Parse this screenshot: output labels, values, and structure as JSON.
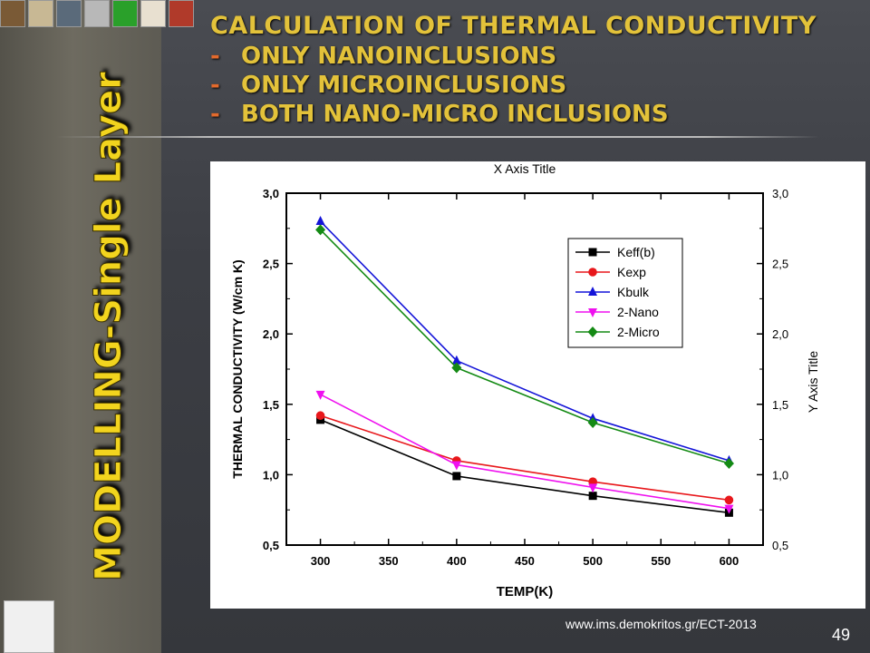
{
  "slide": {
    "title": "CALCULATION OF THERMAL CONDUCTIVITY",
    "bullets": [
      "ONLY NANOINCLUSIONS",
      "ONLY MICROINCLUSIONS",
      "BOTH  NANO-MICRO INCLUSIONS"
    ],
    "bullet_dash": "-",
    "side_title": "MODELLING-Single Layer",
    "footer_url": "www.ims.demokritos.gr/ECT-2013",
    "page_number": "49",
    "colors": {
      "heading": "#e3c23a",
      "side_title": "#f2d41e",
      "dash": "#e36a2c"
    }
  },
  "chart_data": {
    "type": "line",
    "title": "X Axis Title",
    "xlabel": "TEMP(K)",
    "ylabel": "THERMAL CONDUCTIVITY  (W/cm K)",
    "y2label": "Y Axis Title",
    "x": [
      300,
      400,
      500,
      600
    ],
    "xlim": [
      275,
      625
    ],
    "ylim": [
      0.5,
      3.0
    ],
    "xticks": [
      "300",
      "350",
      "400",
      "450",
      "500",
      "550",
      "600"
    ],
    "yticks": [
      "0,5",
      "1,0",
      "1,5",
      "2,0",
      "2,5",
      "3,0"
    ],
    "legend_position": "top-right",
    "grid": false,
    "series": [
      {
        "name": "Keff(b)",
        "color": "#000000",
        "marker": "square",
        "values": [
          1.39,
          0.99,
          0.85,
          0.73
        ]
      },
      {
        "name": "Kexp",
        "color": "#e8171b",
        "marker": "circle",
        "values": [
          1.42,
          1.1,
          0.95,
          0.82
        ]
      },
      {
        "name": "Kbulk",
        "color": "#1414d8",
        "marker": "triangle-up",
        "values": [
          2.8,
          1.81,
          1.4,
          1.1
        ]
      },
      {
        "name": "2-Nano",
        "color": "#ef10ef",
        "marker": "triangle-down",
        "values": [
          1.57,
          1.07,
          0.91,
          0.76
        ]
      },
      {
        "name": "2-Micro",
        "color": "#148a14",
        "marker": "diamond",
        "values": [
          2.74,
          1.76,
          1.37,
          1.08
        ]
      }
    ]
  }
}
